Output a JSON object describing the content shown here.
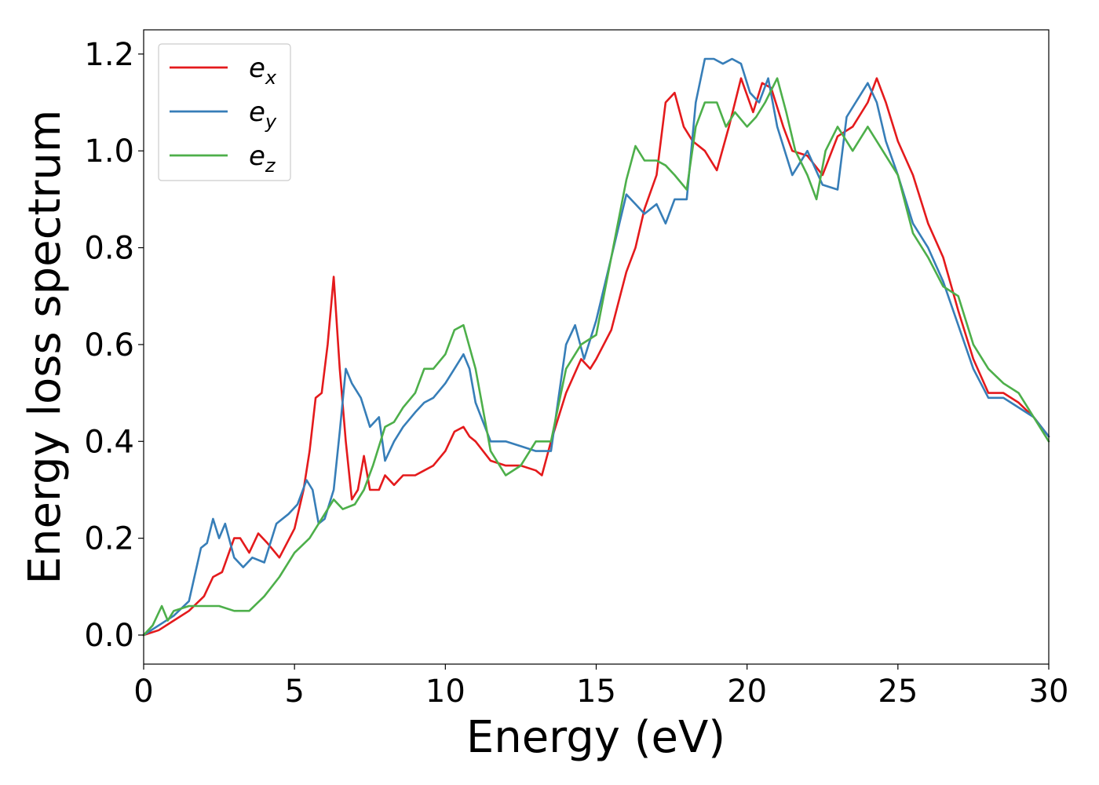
{
  "chart_data": {
    "type": "line",
    "title": "",
    "xlabel": "Energy (eV)",
    "ylabel": "Energy loss spectrum",
    "xlim": [
      0,
      30
    ],
    "ylim": [
      -0.06,
      1.25
    ],
    "xticks": [
      0,
      5,
      10,
      15,
      20,
      25,
      30
    ],
    "yticks": [
      0.0,
      0.2,
      0.4,
      0.6,
      0.8,
      1.0,
      1.2
    ],
    "xtick_labels": [
      "0",
      "5",
      "10",
      "15",
      "20",
      "25",
      "30"
    ],
    "ytick_labels": [
      "0.0",
      "0.2",
      "0.4",
      "0.6",
      "0.8",
      "1.0",
      "1.2"
    ],
    "grid": false,
    "legend_position": "top-left",
    "series": [
      {
        "name": "e",
        "subscript": "x",
        "color": "#e41a1c",
        "x": [
          0,
          0.5,
          1,
          1.5,
          2,
          2.3,
          2.6,
          3,
          3.2,
          3.5,
          3.8,
          4.1,
          4.5,
          5,
          5.3,
          5.5,
          5.7,
          5.9,
          6.1,
          6.3,
          6.5,
          6.7,
          6.9,
          7.1,
          7.3,
          7.5,
          7.8,
          8,
          8.3,
          8.6,
          9,
          9.3,
          9.6,
          10,
          10.3,
          10.6,
          10.8,
          11,
          11.5,
          12,
          12.5,
          13,
          13.2,
          13.5,
          14,
          14.5,
          14.8,
          15,
          15.5,
          16,
          16.3,
          16.6,
          17,
          17.3,
          17.6,
          17.9,
          18.2,
          18.6,
          19,
          19.4,
          19.8,
          20.2,
          20.5,
          20.8,
          21.2,
          21.5,
          22,
          22.5,
          23,
          23.5,
          24,
          24.3,
          24.6,
          25,
          25.5,
          26,
          26.5,
          27,
          27.5,
          28,
          28.5,
          29,
          29.5,
          30
        ],
        "y": [
          0,
          0.01,
          0.03,
          0.05,
          0.08,
          0.12,
          0.13,
          0.2,
          0.2,
          0.17,
          0.21,
          0.19,
          0.16,
          0.22,
          0.3,
          0.38,
          0.49,
          0.5,
          0.6,
          0.74,
          0.55,
          0.4,
          0.28,
          0.3,
          0.37,
          0.3,
          0.3,
          0.33,
          0.31,
          0.33,
          0.33,
          0.34,
          0.35,
          0.38,
          0.42,
          0.43,
          0.41,
          0.4,
          0.36,
          0.35,
          0.35,
          0.34,
          0.33,
          0.4,
          0.5,
          0.57,
          0.55,
          0.57,
          0.63,
          0.75,
          0.8,
          0.88,
          0.95,
          1.1,
          1.12,
          1.05,
          1.02,
          1,
          0.96,
          1.05,
          1.15,
          1.08,
          1.14,
          1.13,
          1.05,
          1,
          0.99,
          0.95,
          1.03,
          1.05,
          1.1,
          1.15,
          1.1,
          1.02,
          0.95,
          0.85,
          0.78,
          0.67,
          0.57,
          0.5,
          0.5,
          0.48,
          0.45,
          0.41
        ]
      },
      {
        "name": "e",
        "subscript": "y",
        "color": "#377eb8",
        "x": [
          0,
          0.5,
          1,
          1.5,
          1.9,
          2.1,
          2.3,
          2.5,
          2.7,
          3,
          3.3,
          3.6,
          4,
          4.4,
          4.8,
          5.1,
          5.4,
          5.6,
          5.8,
          6,
          6.3,
          6.5,
          6.7,
          6.9,
          7.2,
          7.5,
          7.8,
          8,
          8.3,
          8.6,
          9,
          9.3,
          9.6,
          10,
          10.3,
          10.6,
          10.8,
          11,
          11.5,
          12,
          12.5,
          13,
          13.5,
          14,
          14.3,
          14.6,
          15,
          15.5,
          16,
          16.3,
          16.6,
          17,
          17.3,
          17.6,
          18,
          18.3,
          18.6,
          18.9,
          19.2,
          19.5,
          19.8,
          20.1,
          20.4,
          20.7,
          21,
          21.5,
          22,
          22.5,
          23,
          23.3,
          23.6,
          24,
          24.3,
          24.6,
          25,
          25.5,
          26,
          26.5,
          27,
          27.5,
          28,
          28.5,
          29,
          29.5,
          30
        ],
        "y": [
          0,
          0.02,
          0.04,
          0.07,
          0.18,
          0.19,
          0.24,
          0.2,
          0.23,
          0.16,
          0.14,
          0.16,
          0.15,
          0.23,
          0.25,
          0.27,
          0.32,
          0.3,
          0.23,
          0.24,
          0.3,
          0.42,
          0.55,
          0.52,
          0.49,
          0.43,
          0.45,
          0.36,
          0.4,
          0.43,
          0.46,
          0.48,
          0.49,
          0.52,
          0.55,
          0.58,
          0.55,
          0.48,
          0.4,
          0.4,
          0.39,
          0.38,
          0.38,
          0.6,
          0.64,
          0.57,
          0.65,
          0.78,
          0.91,
          0.89,
          0.87,
          0.89,
          0.85,
          0.9,
          0.9,
          1.1,
          1.19,
          1.19,
          1.18,
          1.19,
          1.18,
          1.12,
          1.1,
          1.15,
          1.05,
          0.95,
          1,
          0.93,
          0.92,
          1.07,
          1.1,
          1.14,
          1.1,
          1.02,
          0.95,
          0.85,
          0.8,
          0.73,
          0.64,
          0.55,
          0.49,
          0.49,
          0.47,
          0.45,
          0.41
        ]
      },
      {
        "name": "e",
        "subscript": "z",
        "color": "#4daf4a",
        "x": [
          0,
          0.3,
          0.6,
          0.8,
          1,
          1.5,
          2,
          2.5,
          3,
          3.5,
          4,
          4.5,
          5,
          5.5,
          6,
          6.3,
          6.6,
          7,
          7.3,
          7.6,
          8,
          8.3,
          8.6,
          9,
          9.3,
          9.6,
          10,
          10.3,
          10.6,
          11,
          11.5,
          12,
          12.5,
          13,
          13.5,
          14,
          14.5,
          15,
          15.5,
          16,
          16.3,
          16.6,
          17,
          17.3,
          17.6,
          18,
          18.3,
          18.6,
          19,
          19.3,
          19.6,
          20,
          20.3,
          20.6,
          21,
          21.3,
          21.6,
          22,
          22.3,
          22.6,
          23,
          23.5,
          24,
          24.5,
          25,
          25.5,
          26,
          26.5,
          27,
          27.5,
          28,
          28.5,
          29,
          29.5,
          30
        ],
        "y": [
          0,
          0.02,
          0.06,
          0.03,
          0.05,
          0.06,
          0.06,
          0.06,
          0.05,
          0.05,
          0.08,
          0.12,
          0.17,
          0.2,
          0.25,
          0.28,
          0.26,
          0.27,
          0.3,
          0.35,
          0.43,
          0.44,
          0.47,
          0.5,
          0.55,
          0.55,
          0.58,
          0.63,
          0.64,
          0.55,
          0.38,
          0.33,
          0.35,
          0.4,
          0.4,
          0.55,
          0.6,
          0.62,
          0.78,
          0.94,
          1.01,
          0.98,
          0.98,
          0.97,
          0.95,
          0.92,
          1.05,
          1.1,
          1.1,
          1.05,
          1.08,
          1.05,
          1.07,
          1.1,
          1.15,
          1.08,
          1,
          0.95,
          0.9,
          1.0,
          1.05,
          1.0,
          1.05,
          1.0,
          0.95,
          0.83,
          0.78,
          0.72,
          0.7,
          0.6,
          0.55,
          0.52,
          0.5,
          0.45,
          0.4
        ]
      }
    ]
  }
}
